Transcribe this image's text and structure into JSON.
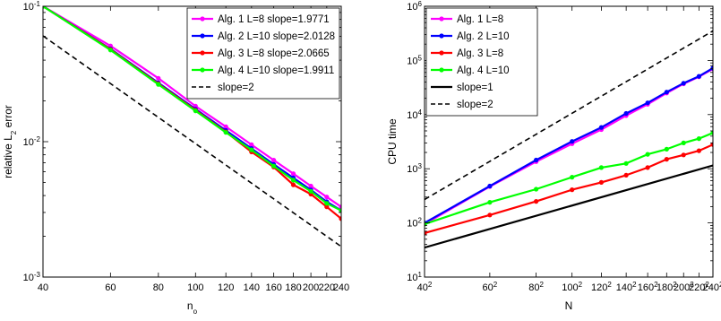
{
  "chart_data": [
    {
      "type": "line",
      "x_scale": "log",
      "y_scale": "log",
      "xlabel": "n",
      "xlabel_sub": "o",
      "ylabel": "relative L",
      "ylabel_sub": "2",
      "ylabel_suffix": " error",
      "xlim": [
        40,
        240
      ],
      "ylim": [
        0.001,
        0.1
      ],
      "x_ticks": [
        40,
        60,
        80,
        100,
        120,
        140,
        160,
        180,
        200,
        220,
        240
      ],
      "x_tick_labels": [
        "40",
        "60",
        "80",
        "100",
        "120",
        "140",
        "160",
        "180",
        "200",
        "220",
        "240"
      ],
      "y_ticks": [
        0.001,
        0.01,
        0.1
      ],
      "y_tick_labels": [
        {
          "base": "10",
          "exp": "-3"
        },
        {
          "base": "10",
          "exp": "-2"
        },
        {
          "base": "10",
          "exp": "-1"
        }
      ],
      "grid": false,
      "legend_position": "top-right",
      "series": [
        {
          "name": "Alg. 1 L=8 slope=1.9771",
          "color": "#ff00ff",
          "dashed": false,
          "markers": true,
          "x": [
            40,
            60,
            80,
            100,
            120,
            140,
            160,
            180,
            200,
            220,
            240
          ],
          "y": [
            0.1,
            0.051,
            0.0294,
            0.0183,
            0.0129,
            0.0095,
            0.0073,
            0.0058,
            0.0047,
            0.0039,
            0.0033
          ]
        },
        {
          "name": "Alg. 2 L=10 slope=2.0128",
          "color": "#0000ff",
          "dashed": false,
          "markers": true,
          "x": [
            40,
            60,
            80,
            100,
            120,
            140,
            160,
            180,
            200,
            220,
            240
          ],
          "y": [
            0.1,
            0.0485,
            0.0272,
            0.0174,
            0.0121,
            0.0089,
            0.0068,
            0.0054,
            0.0044,
            0.0036,
            0.0031
          ]
        },
        {
          "name": "Alg. 3 L=8 slope=2.0665",
          "color": "#ff0000",
          "dashed": false,
          "markers": true,
          "x": [
            40,
            60,
            80,
            100,
            120,
            140,
            160,
            180,
            200,
            220,
            240
          ],
          "y": [
            0.1,
            0.048,
            0.0268,
            0.0171,
            0.0118,
            0.0084,
            0.0065,
            0.0048,
            0.0041,
            0.0033,
            0.0027
          ]
        },
        {
          "name": "Alg. 4 L=10 slope=1.9911",
          "color": "#00ff00",
          "dashed": false,
          "markers": true,
          "x": [
            40,
            60,
            80,
            100,
            120,
            140,
            160,
            180,
            200,
            220,
            240
          ],
          "y": [
            0.1,
            0.0475,
            0.0265,
            0.0169,
            0.0117,
            0.0087,
            0.0066,
            0.0052,
            0.0043,
            0.0035,
            0.0031
          ]
        },
        {
          "name": "slope=2",
          "color": "#000000",
          "dashed": true,
          "markers": false,
          "x": [
            40,
            240
          ],
          "y": [
            0.0605,
            0.00168
          ]
        }
      ]
    },
    {
      "type": "line",
      "x_scale": "log",
      "y_scale": "log",
      "xlabel": "N",
      "ylabel": "CPU time",
      "xlim": [
        1600,
        57600
      ],
      "ylim": [
        10,
        1000000
      ],
      "x_ticks": [
        1600,
        3600,
        6400,
        10000,
        14400,
        19600,
        25600,
        32400,
        40000,
        48400,
        57600
      ],
      "x_tick_labels": [
        {
          "base": "40",
          "exp": "2"
        },
        {
          "base": "60",
          "exp": "2"
        },
        {
          "base": "80",
          "exp": "2"
        },
        {
          "base": "100",
          "exp": "2"
        },
        {
          "base": "120",
          "exp": "2"
        },
        {
          "base": "140",
          "exp": "2"
        },
        {
          "base": "160",
          "exp": "2"
        },
        {
          "base": "180",
          "exp": "2"
        },
        {
          "base": "200",
          "exp": "2"
        },
        {
          "base": "220",
          "exp": "2"
        },
        {
          "base": "240",
          "exp": "2"
        }
      ],
      "y_ticks": [
        10,
        100,
        1000,
        10000,
        100000,
        1000000
      ],
      "y_tick_labels": [
        {
          "base": "10",
          "exp": "1"
        },
        {
          "base": "10",
          "exp": "2"
        },
        {
          "base": "10",
          "exp": "3"
        },
        {
          "base": "10",
          "exp": "4"
        },
        {
          "base": "10",
          "exp": "5"
        },
        {
          "base": "10",
          "exp": "6"
        }
      ],
      "grid": false,
      "legend_position": "top-left",
      "series": [
        {
          "name": "Alg. 1 L=8",
          "color": "#ff00ff",
          "dashed": false,
          "markers": true,
          "x": [
            1600,
            3600,
            6400,
            10000,
            14400,
            19600,
            25600,
            32400,
            40000,
            48400,
            57600
          ],
          "y": [
            95,
            470,
            1350,
            2900,
            5300,
            9600,
            15500,
            25000,
            37000,
            50000,
            70000
          ]
        },
        {
          "name": "Alg. 2 L=10",
          "color": "#0000ff",
          "dashed": false,
          "markers": true,
          "x": [
            1600,
            3600,
            6400,
            10000,
            14400,
            19600,
            25600,
            32400,
            40000,
            48400,
            57600
          ],
          "y": [
            100,
            480,
            1450,
            3200,
            5800,
            10500,
            16500,
            26000,
            38000,
            51000,
            72000
          ]
        },
        {
          "name": "Alg. 3 L=8",
          "color": "#ff0000",
          "dashed": false,
          "markers": true,
          "x": [
            1600,
            3600,
            6400,
            10000,
            14400,
            19600,
            25600,
            32400,
            40000,
            48400,
            57600
          ],
          "y": [
            65,
            140,
            250,
            410,
            560,
            760,
            1050,
            1500,
            1800,
            2150,
            2800
          ]
        },
        {
          "name": "Alg. 4 L=10",
          "color": "#00ff00",
          "dashed": false,
          "markers": true,
          "x": [
            1600,
            3600,
            6400,
            10000,
            14400,
            19600,
            25600,
            32400,
            40000,
            48400,
            57600
          ],
          "y": [
            95,
            240,
            420,
            700,
            1050,
            1250,
            1850,
            2300,
            3000,
            3600,
            4600
          ]
        },
        {
          "name": "slope=1",
          "color": "#000000",
          "dashed": false,
          "markers": false,
          "x": [
            1600,
            57600
          ],
          "y": [
            35,
            1150
          ]
        },
        {
          "name": "slope=2",
          "color": "#000000",
          "dashed": true,
          "markers": false,
          "x": [
            1600,
            57600
          ],
          "y": [
            270,
            350000
          ]
        }
      ]
    }
  ]
}
